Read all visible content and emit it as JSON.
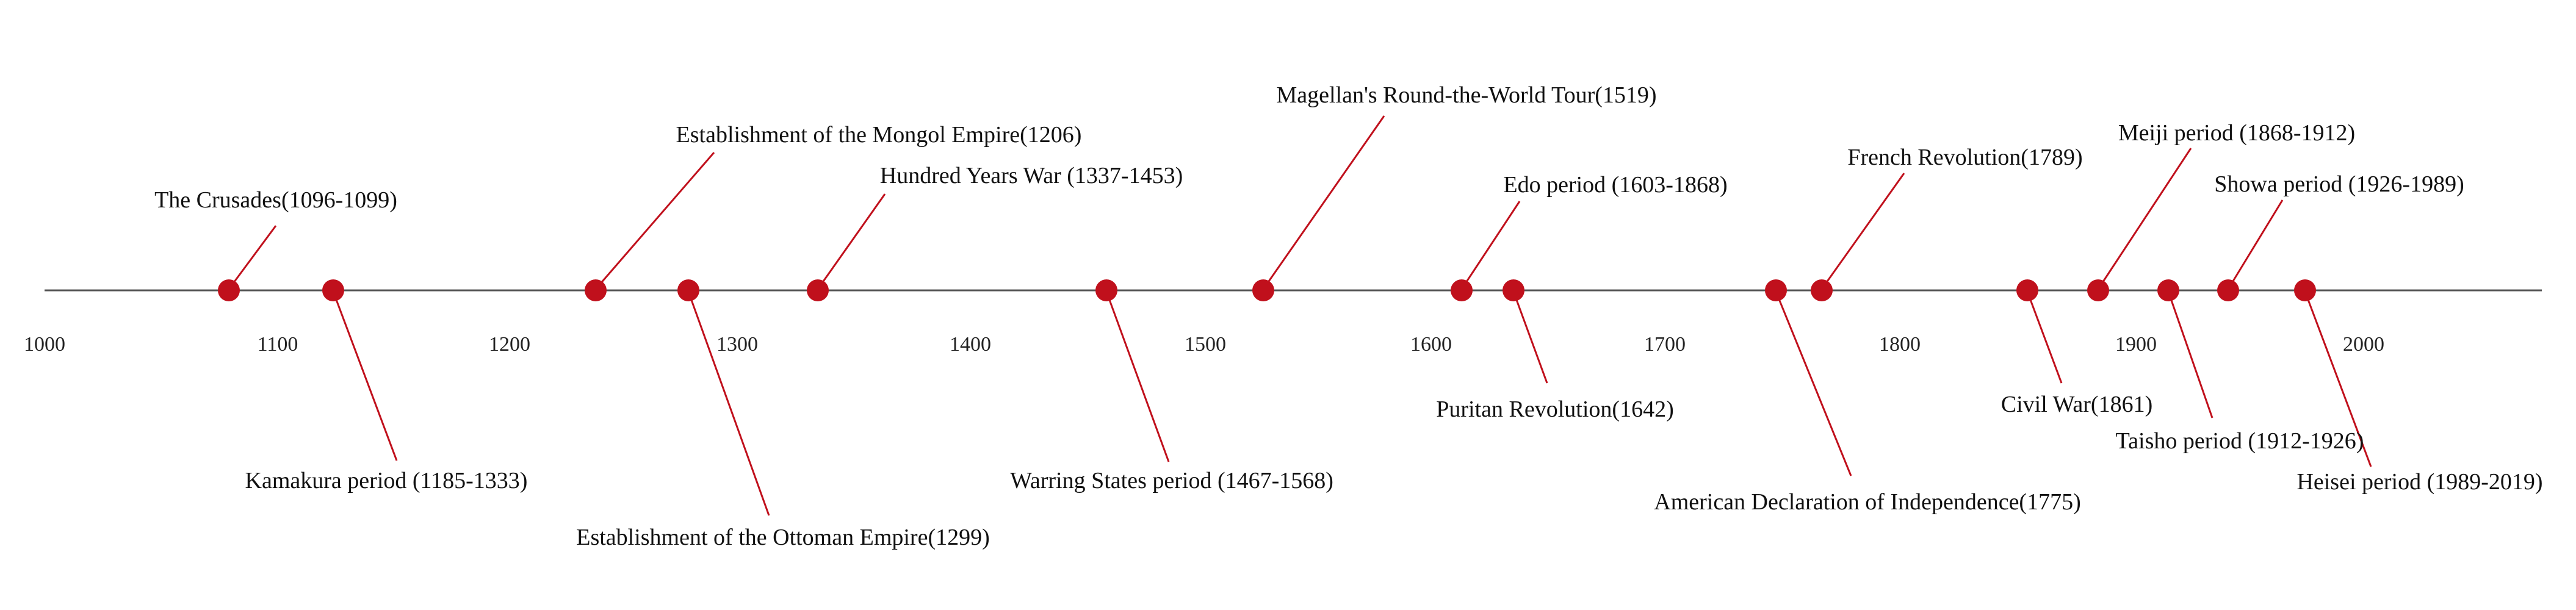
{
  "timeline": {
    "axis_range": [
      1000,
      2050
    ],
    "ticks": [
      "1000",
      "1100",
      "1200",
      "1300",
      "1400",
      "1500",
      "1600",
      "1700",
      "1800",
      "1900",
      "2000"
    ],
    "colors": {
      "axis": "#555555",
      "marker": "#c0101c",
      "connector": "#c0101c",
      "text": "#111111"
    },
    "events": [
      {
        "year": 1078,
        "label": "The Crusades(1096-1099)",
        "side": "above"
      },
      {
        "year": 1122,
        "label": "Kamakura period (1185-1333)",
        "side": "below"
      },
      {
        "year": 1233,
        "label": "Establishment of the Mongol Empire(1206)",
        "side": "above"
      },
      {
        "year": 1272,
        "label": "Establishment of the Ottoman Empire(1299)",
        "side": "below"
      },
      {
        "year": 1327,
        "label": "Hundred Years War (1337-1453)",
        "side": "above"
      },
      {
        "year": 1449,
        "label": "Warring States period (1467-1568)",
        "side": "below"
      },
      {
        "year": 1515,
        "label": "Magellan's Round-the-World Tour(1519)",
        "side": "above"
      },
      {
        "year": 1598,
        "label": "Edo period (1603-1868)",
        "side": "above"
      },
      {
        "year": 1620,
        "label": "Puritan Revolution(1642)",
        "side": "below"
      },
      {
        "year": 1731,
        "label": "American Declaration of Independence(1775)",
        "side": "below"
      },
      {
        "year": 1750,
        "label": "French Revolution(1789)",
        "side": "above"
      },
      {
        "year": 1838,
        "label": "Civil War(1861)",
        "side": "below"
      },
      {
        "year": 1868,
        "label": "Meiji period (1868-1912)",
        "side": "above"
      },
      {
        "year": 1898,
        "label": "Taisho period (1912-1926)",
        "side": "below"
      },
      {
        "year": 1923,
        "label": "Showa period (1926-1989)",
        "side": "above"
      },
      {
        "year": 1956,
        "label": "Heisei period (1989-2019)",
        "side": "below"
      }
    ]
  }
}
